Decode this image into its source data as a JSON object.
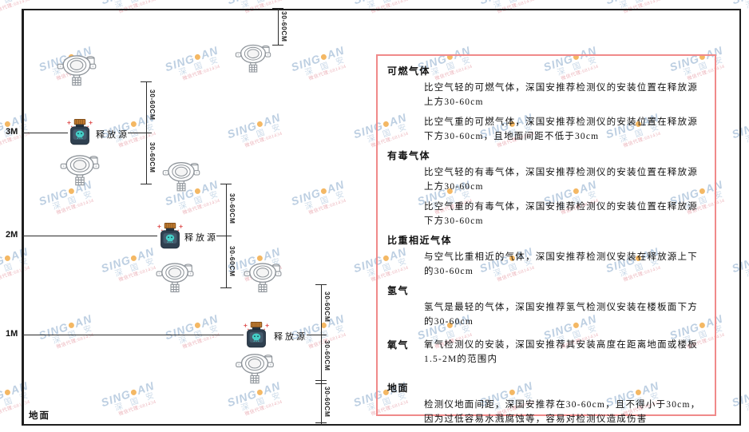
{
  "diagram": {
    "axis_labels": {
      "m3": "3M",
      "m2": "2M",
      "m1": "1M"
    },
    "ground_label": "地面",
    "release_source_label": "释放源",
    "dim_label": "30-60CM"
  },
  "panel": {
    "border_color": "#f08a8a",
    "sections": [
      {
        "heading": "可燃气体",
        "paragraphs": [
          "比空气轻的可燃气体，深国安推荐检测仪的安装位置在释放源上方30-60cm",
          "比空气重的可燃气体，深国安推荐检测仪的安装位置在释放源下方30-60cm，且地面间距不低于30cm"
        ]
      },
      {
        "heading": "有毒气体",
        "paragraphs": [
          "比空气轻的有毒气体，深国安推荐检测仪的安装位置在释放源上方30-60cm",
          "比空气重的有毒气体，深国安推荐检测仪的安装位置在释放源下方30-60cm"
        ]
      },
      {
        "heading": "比重相近气体",
        "paragraphs": [
          "与空气比重相近的气体，深国安推荐检测仪安装在释放源上下的30-60cm"
        ]
      },
      {
        "heading": "氢气",
        "paragraphs": [
          "氢气是最轻的气体，深国安推荐氢气检测仪安装在楼板面下方的30-60cm"
        ]
      },
      {
        "heading": "氧气",
        "paragraphs": [
          "氧气检测仪的安装，深国安推荐其安装高度在距离地面或楼板1.5-2M的范围内"
        ]
      },
      {
        "heading": "地面",
        "paragraphs": [
          "检测仪地面间距，深国安推荐在30-60cm，且不得小于30cm，因为过低容易水溅腐蚀等，容易对检测仪造成伤害"
        ]
      }
    ]
  },
  "watermark": {
    "brand_prefix": "SING",
    "brand_suffix": "AN",
    "company": "深 国 安",
    "note": "微信代理:681434"
  }
}
